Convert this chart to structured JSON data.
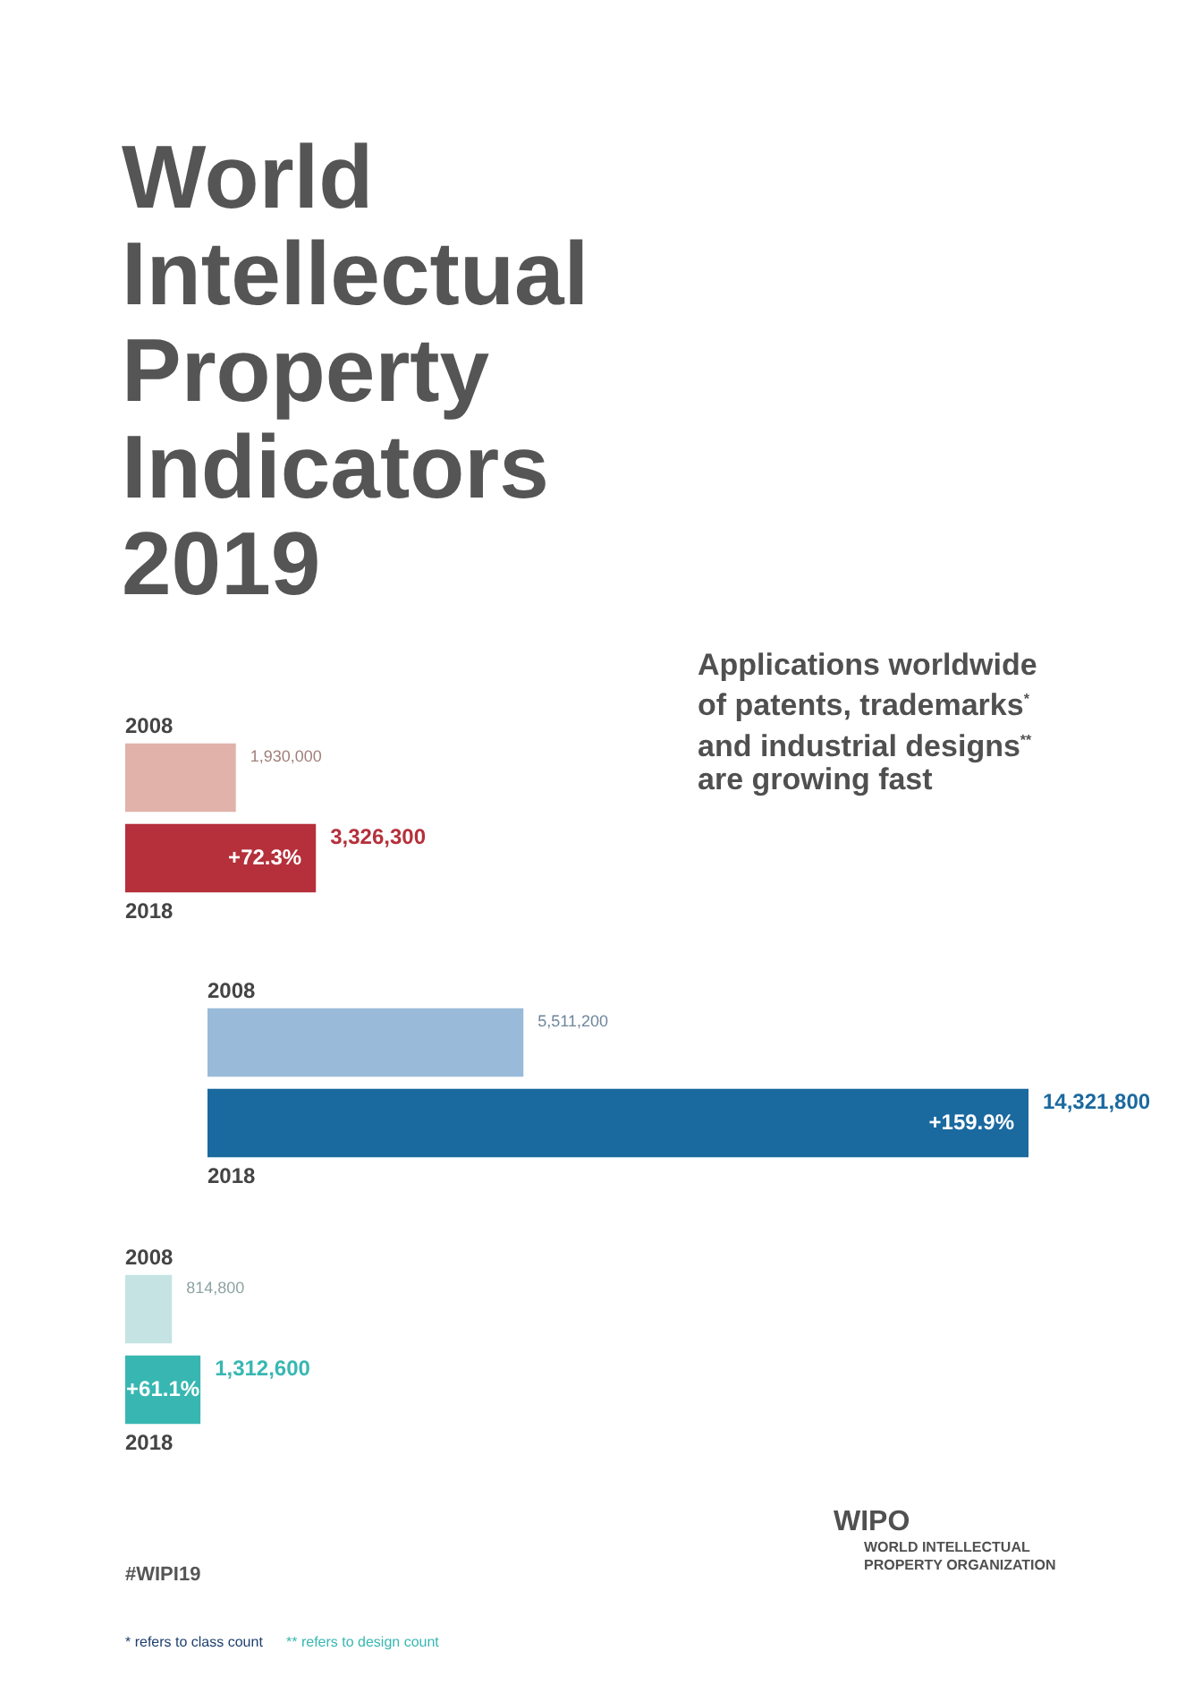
{
  "chart_data": [
    {
      "type": "bar",
      "orientation": "horizontal",
      "title": "World Intellectual Property Indicators 2019",
      "subtitle": "Applications worldwide of patents, trademarks$^{*}$ and industrial designs$^{**}$ are growing fast",
      "categories": [
        "2008",
        "2018"
      ],
      "values": [
        1930000,
        3326300
      ],
      "colors": [
        "#e0b2a9",
        "#b5303b"
      ],
      "value_labels": [
        "1,930,000",
        "3,326,300"
      ],
      "tick_labels": "y",
      "annotations": [
        "+72.3%"
      ]
    },
    {
      "type": "bar",
      "orientation": "horizontal",
      "categories": [
        "2008",
        "2018"
      ],
      "values": [
        5511200,
        14321800
      ],
      "colors": [
        "#99bad8",
        "#1a699f"
      ],
      "value_labels": [
        "5,511,200",
        "14,321,800"
      ],
      "tick_labels": "y",
      "annotations": [
        "+159.9%"
      ]
    },
    {
      "type": "bar",
      "orientation": "horizontal",
      "categories": [
        "2008",
        "2018"
      ],
      "values": [
        814800,
        1312600
      ],
      "colors": [
        "#c5e3e3",
        "#38b7b2"
      ],
      "value_labels": [
        "814,800",
        "1,312,600"
      ],
      "tick_labels": "y",
      "annotations": [
        "+61.1%",
        "#WIPI19",
        "* refers to class count",
        "** refers to design count",
        "WIPO",
        "WORLD INTELLECTUAL PROPERTY ORGANIZATION"
      ]
    }
  ]
}
